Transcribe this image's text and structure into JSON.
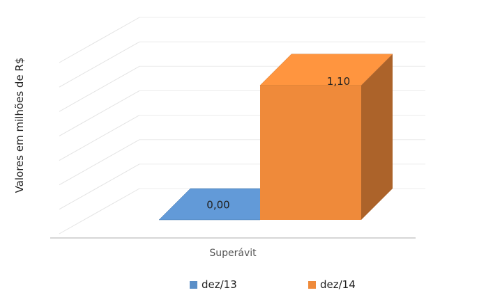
{
  "chart_data": {
    "type": "bar",
    "style": "3d",
    "title": "",
    "xlabel": "",
    "ylabel": "Valores em milhões de R$",
    "categories": [
      "Superávit"
    ],
    "series": [
      {
        "name": "dez/13",
        "values": [
          0.0
        ],
        "label": "0,00",
        "color": "#5b8fc8"
      },
      {
        "name": "dez/14",
        "values": [
          1.1
        ],
        "label": "1,10",
        "color": "#ef8a3a"
      }
    ],
    "ylim": [
      0,
      1.4
    ],
    "grid": true,
    "legend": "bottom"
  }
}
